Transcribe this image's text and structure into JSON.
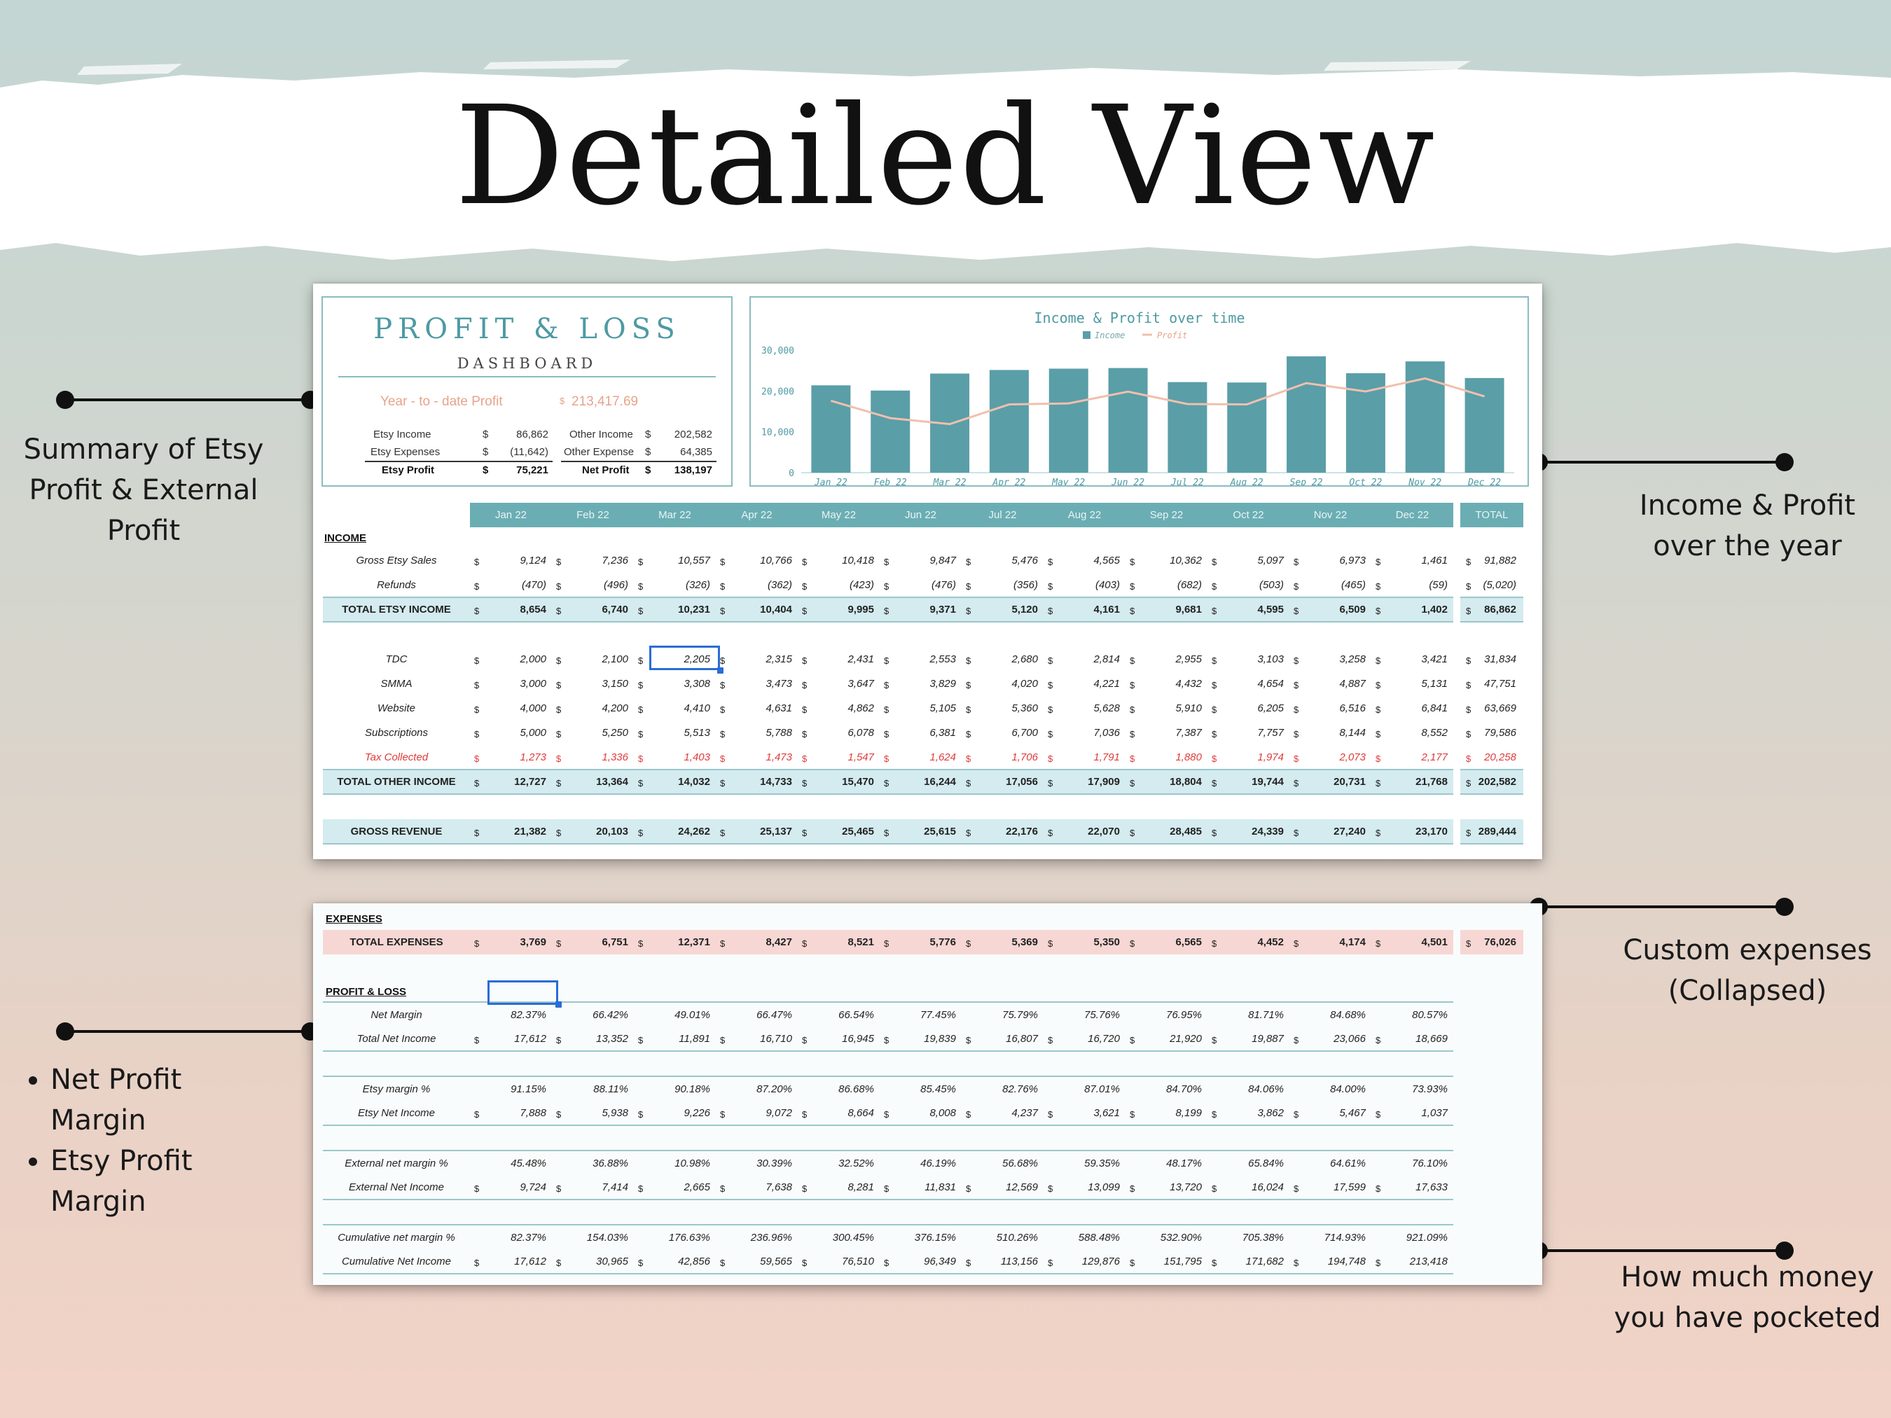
{
  "title": "Detailed View",
  "annotations": {
    "summary": "Summary of Etsy Profit & External Profit",
    "income_chart": "Income & Profit over the year",
    "custom_expenses": "Custom expenses (Collapsed)",
    "margins": [
      "Net Profit Margin",
      "Etsy Profit Margin"
    ],
    "pocketed": "How much money you have pocketed"
  },
  "colors": {
    "teal": "#5a9ea8",
    "header": "#6aaeb4",
    "profit_line": "#f0c0ad",
    "light_blue": "#d4ebef",
    "pink": "#f7d7d4",
    "red": "#e03a3a"
  },
  "dashboard": {
    "title": "PROFIT & LOSS",
    "subtitle": "DASHBOARD",
    "ytd_label": "Year - to - date Profit",
    "ytd_currency": "$",
    "ytd_value": "213,417.69",
    "currency": "$",
    "left": [
      {
        "label": "Etsy Income",
        "value": "86,862"
      },
      {
        "label": "Etsy Expenses",
        "value": "(11,642)"
      },
      {
        "label": "Etsy Profit",
        "value": "75,221"
      }
    ],
    "right": [
      {
        "label": "Other Income",
        "value": "202,582"
      },
      {
        "label": "Other Expense",
        "value": "64,385"
      },
      {
        "label": "Net Profit",
        "value": "138,197"
      }
    ]
  },
  "chart_data": {
    "type": "bar",
    "title": "Income & Profit over time",
    "categories": [
      "Jan 22",
      "Feb 22",
      "Mar 22",
      "Apr 22",
      "May 22",
      "Jun 22",
      "Jul 22",
      "Aug 22",
      "Sep 22",
      "Oct 22",
      "Nov 22",
      "Dec 22"
    ],
    "series": [
      {
        "name": "Income",
        "type": "bar",
        "values": [
          21382,
          20103,
          24262,
          25137,
          25465,
          25615,
          22176,
          22070,
          28485,
          24339,
          27240,
          23170
        ]
      },
      {
        "name": "Profit",
        "type": "line",
        "values": [
          17612,
          13352,
          11891,
          16710,
          16945,
          19839,
          16807,
          16720,
          21920,
          19887,
          23066,
          18669
        ]
      }
    ],
    "y_ticks": [
      "30,000",
      "20,000",
      "10,000",
      "0"
    ],
    "ylim": [
      0,
      30000
    ],
    "legend": "top-center"
  },
  "months": [
    "Jan 22",
    "Feb 22",
    "Mar 22",
    "Apr 22",
    "May 22",
    "Jun 22",
    "Jul 22",
    "Aug 22",
    "Sep 22",
    "Oct 22",
    "Nov 22",
    "Dec 22"
  ],
  "total_label": "TOTAL",
  "currency": "$",
  "income": {
    "section_label": "INCOME",
    "rows": [
      {
        "label": "Gross Etsy Sales",
        "values": [
          "9,124",
          "7,236",
          "10,557",
          "10,766",
          "10,418",
          "9,847",
          "5,476",
          "4,565",
          "10,362",
          "5,097",
          "6,973",
          "1,461"
        ],
        "total": "91,882"
      },
      {
        "label": "Refunds",
        "values": [
          "(470)",
          "(496)",
          "(326)",
          "(362)",
          "(423)",
          "(476)",
          "(356)",
          "(403)",
          "(682)",
          "(503)",
          "(465)",
          "(59)"
        ],
        "total": "(5,020)"
      },
      {
        "label": "TOTAL ETSY INCOME",
        "values": [
          "8,654",
          "6,740",
          "10,231",
          "10,404",
          "9,995",
          "9,371",
          "5,120",
          "4,161",
          "9,681",
          "4,595",
          "6,509",
          "1,402"
        ],
        "total": "86,862"
      },
      {
        "label": "TDC",
        "values": [
          "2,000",
          "2,100",
          "2,205",
          "2,315",
          "2,431",
          "2,553",
          "2,680",
          "2,814",
          "2,955",
          "3,103",
          "3,258",
          "3,421"
        ],
        "total": "31,834"
      },
      {
        "label": "SMMA",
        "values": [
          "3,000",
          "3,150",
          "3,308",
          "3,473",
          "3,647",
          "3,829",
          "4,020",
          "4,221",
          "4,432",
          "4,654",
          "4,887",
          "5,131"
        ],
        "total": "47,751"
      },
      {
        "label": "Website",
        "values": [
          "4,000",
          "4,200",
          "4,410",
          "4,631",
          "4,862",
          "5,105",
          "5,360",
          "5,628",
          "5,910",
          "6,205",
          "6,516",
          "6,841"
        ],
        "total": "63,669"
      },
      {
        "label": "Subscriptions",
        "values": [
          "5,000",
          "5,250",
          "5,513",
          "5,788",
          "6,078",
          "6,381",
          "6,700",
          "7,036",
          "7,387",
          "7,757",
          "8,144",
          "8,552"
        ],
        "total": "79,586"
      },
      {
        "label": "Tax Collected",
        "values": [
          "1,273",
          "1,336",
          "1,403",
          "1,473",
          "1,547",
          "1,624",
          "1,706",
          "1,791",
          "1,880",
          "1,974",
          "2,073",
          "2,177"
        ],
        "total": "20,258"
      },
      {
        "label": "TOTAL OTHER INCOME",
        "values": [
          "12,727",
          "13,364",
          "14,032",
          "14,733",
          "15,470",
          "16,244",
          "17,056",
          "17,909",
          "18,804",
          "19,744",
          "20,731",
          "21,768"
        ],
        "total": "202,582"
      },
      {
        "label": "GROSS REVENUE",
        "values": [
          "21,382",
          "20,103",
          "24,262",
          "25,137",
          "25,465",
          "25,615",
          "22,176",
          "22,070",
          "28,485",
          "24,339",
          "27,240",
          "23,170"
        ],
        "total": "289,444"
      }
    ]
  },
  "expenses": {
    "section_label": "EXPENSES",
    "total": {
      "label": "TOTAL EXPENSES",
      "values": [
        "3,769",
        "6,751",
        "12,371",
        "8,427",
        "8,521",
        "5,776",
        "5,369",
        "5,350",
        "6,565",
        "4,452",
        "4,174",
        "4,501"
      ],
      "total": "76,026"
    }
  },
  "profit_loss": {
    "section_label": "PROFIT & LOSS",
    "rows": [
      {
        "label": "Net Margin",
        "values": [
          "82.37%",
          "66.42%",
          "49.01%",
          "66.47%",
          "66.54%",
          "77.45%",
          "75.79%",
          "75.76%",
          "76.95%",
          "81.71%",
          "84.68%",
          "80.57%"
        ]
      },
      {
        "label": "Total Net Income",
        "values": [
          "17,612",
          "13,352",
          "11,891",
          "16,710",
          "16,945",
          "19,839",
          "16,807",
          "16,720",
          "21,920",
          "19,887",
          "23,066",
          "18,669"
        ]
      },
      {
        "label": "Etsy margin %",
        "values": [
          "91.15%",
          "88.11%",
          "90.18%",
          "87.20%",
          "86.68%",
          "85.45%",
          "82.76%",
          "87.01%",
          "84.70%",
          "84.06%",
          "84.00%",
          "73.93%"
        ]
      },
      {
        "label": "Etsy Net Income",
        "values": [
          "7,888",
          "5,938",
          "9,226",
          "9,072",
          "8,664",
          "8,008",
          "4,237",
          "3,621",
          "8,199",
          "3,862",
          "5,467",
          "1,037"
        ]
      },
      {
        "label": "External net margin %",
        "values": [
          "45.48%",
          "36.88%",
          "10.98%",
          "30.39%",
          "32.52%",
          "46.19%",
          "56.68%",
          "59.35%",
          "48.17%",
          "65.84%",
          "64.61%",
          "76.10%"
        ]
      },
      {
        "label": "External Net Income",
        "values": [
          "9,724",
          "7,414",
          "2,665",
          "7,638",
          "8,281",
          "11,831",
          "12,569",
          "13,099",
          "13,720",
          "16,024",
          "17,599",
          "17,633"
        ]
      },
      {
        "label": "Cumulative net margin %",
        "values": [
          "82.37%",
          "154.03%",
          "176.63%",
          "236.96%",
          "300.45%",
          "376.15%",
          "510.26%",
          "588.48%",
          "532.90%",
          "705.38%",
          "714.93%",
          "921.09%"
        ]
      },
      {
        "label": "Cumulative Net Income",
        "values": [
          "17,612",
          "30,965",
          "42,856",
          "59,565",
          "76,510",
          "96,349",
          "113,156",
          "129,876",
          "151,795",
          "171,682",
          "194,748",
          "213,418"
        ]
      }
    ]
  }
}
